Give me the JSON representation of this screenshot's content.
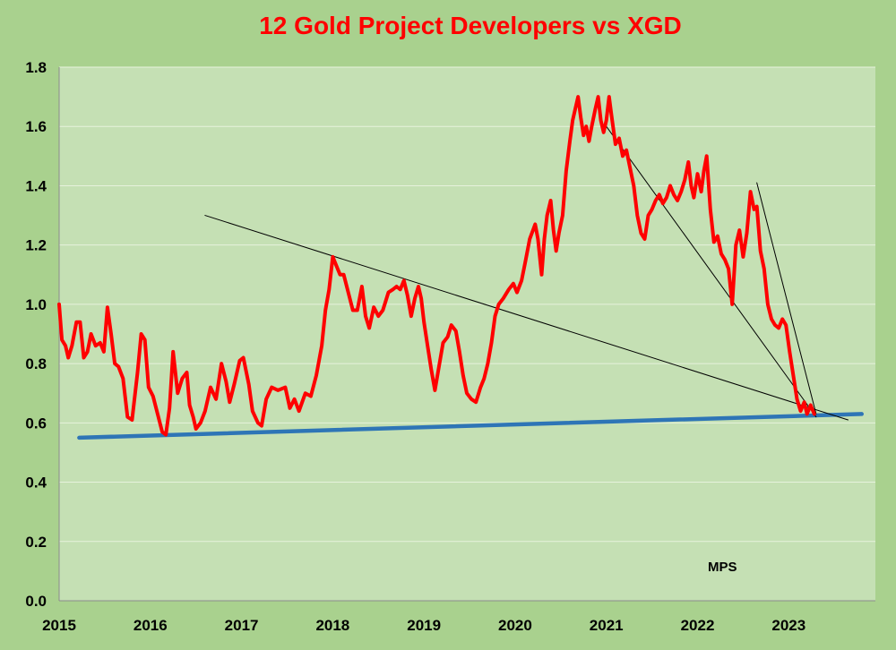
{
  "chart_data": {
    "type": "line",
    "title": "12 Gold Project Developers vs XGD",
    "annotation": "MPS",
    "xlabel": "",
    "ylabel": "",
    "xlim": [
      2015,
      2023.95
    ],
    "ylim": [
      0,
      1.8
    ],
    "x_ticks": [
      "2015",
      "2016",
      "2017",
      "2018",
      "2019",
      "2020",
      "2021",
      "2022",
      "2023"
    ],
    "y_ticks": [
      "0.0",
      "0.2",
      "0.4",
      "0.6",
      "0.8",
      "1.0",
      "1.2",
      "1.4",
      "1.6",
      "1.8"
    ],
    "grid": true,
    "legend": "none",
    "colors": {
      "outer_background": "#a9d18e",
      "plot_background": "#c5e0b4",
      "grid": "#e6f2dc",
      "title": "#ff0000",
      "ratio_line": "#ff0000",
      "support_line": "#2e75b6",
      "trend_lines": "#000000"
    },
    "series": [
      {
        "color": "#ff0000",
        "points": [
          [
            2015.0,
            1.0
          ],
          [
            2015.03,
            0.88
          ],
          [
            2015.07,
            0.86
          ],
          [
            2015.1,
            0.82
          ],
          [
            2015.14,
            0.86
          ],
          [
            2015.19,
            0.94
          ],
          [
            2015.23,
            0.94
          ],
          [
            2015.27,
            0.82
          ],
          [
            2015.31,
            0.84
          ],
          [
            2015.35,
            0.9
          ],
          [
            2015.4,
            0.86
          ],
          [
            2015.45,
            0.87
          ],
          [
            2015.49,
            0.84
          ],
          [
            2015.53,
            0.99
          ],
          [
            2015.57,
            0.9
          ],
          [
            2015.61,
            0.8
          ],
          [
            2015.65,
            0.79
          ],
          [
            2015.7,
            0.75
          ],
          [
            2015.75,
            0.62
          ],
          [
            2015.8,
            0.61
          ],
          [
            2015.86,
            0.77
          ],
          [
            2015.9,
            0.9
          ],
          [
            2015.94,
            0.88
          ],
          [
            2015.98,
            0.72
          ],
          [
            2016.03,
            0.69
          ],
          [
            2016.08,
            0.63
          ],
          [
            2016.13,
            0.57
          ],
          [
            2016.17,
            0.56
          ],
          [
            2016.21,
            0.65
          ],
          [
            2016.25,
            0.84
          ],
          [
            2016.3,
            0.7
          ],
          [
            2016.35,
            0.75
          ],
          [
            2016.4,
            0.77
          ],
          [
            2016.43,
            0.66
          ],
          [
            2016.47,
            0.62
          ],
          [
            2016.5,
            0.58
          ],
          [
            2016.55,
            0.6
          ],
          [
            2016.6,
            0.64
          ],
          [
            2016.66,
            0.72
          ],
          [
            2016.72,
            0.68
          ],
          [
            2016.78,
            0.8
          ],
          [
            2016.83,
            0.74
          ],
          [
            2016.87,
            0.67
          ],
          [
            2016.92,
            0.73
          ],
          [
            2016.98,
            0.81
          ],
          [
            2017.02,
            0.82
          ],
          [
            2017.08,
            0.73
          ],
          [
            2017.12,
            0.64
          ],
          [
            2017.18,
            0.6
          ],
          [
            2017.22,
            0.59
          ],
          [
            2017.27,
            0.68
          ],
          [
            2017.33,
            0.72
          ],
          [
            2017.4,
            0.71
          ],
          [
            2017.48,
            0.72
          ],
          [
            2017.53,
            0.65
          ],
          [
            2017.58,
            0.68
          ],
          [
            2017.63,
            0.64
          ],
          [
            2017.7,
            0.7
          ],
          [
            2017.76,
            0.69
          ],
          [
            2017.82,
            0.76
          ],
          [
            2017.88,
            0.86
          ],
          [
            2017.92,
            0.98
          ],
          [
            2017.96,
            1.05
          ],
          [
            2018.0,
            1.16
          ],
          [
            2018.04,
            1.13
          ],
          [
            2018.08,
            1.1
          ],
          [
            2018.12,
            1.1
          ],
          [
            2018.17,
            1.04
          ],
          [
            2018.22,
            0.98
          ],
          [
            2018.27,
            0.98
          ],
          [
            2018.32,
            1.06
          ],
          [
            2018.36,
            0.96
          ],
          [
            2018.4,
            0.92
          ],
          [
            2018.45,
            0.99
          ],
          [
            2018.5,
            0.96
          ],
          [
            2018.55,
            0.98
          ],
          [
            2018.61,
            1.04
          ],
          [
            2018.66,
            1.05
          ],
          [
            2018.7,
            1.06
          ],
          [
            2018.74,
            1.05
          ],
          [
            2018.78,
            1.08
          ],
          [
            2018.82,
            1.03
          ],
          [
            2018.86,
            0.96
          ],
          [
            2018.9,
            1.02
          ],
          [
            2018.94,
            1.06
          ],
          [
            2018.97,
            1.02
          ],
          [
            2019.0,
            0.94
          ],
          [
            2019.04,
            0.86
          ],
          [
            2019.08,
            0.78
          ],
          [
            2019.12,
            0.71
          ],
          [
            2019.17,
            0.8
          ],
          [
            2019.21,
            0.87
          ],
          [
            2019.26,
            0.89
          ],
          [
            2019.3,
            0.93
          ],
          [
            2019.35,
            0.91
          ],
          [
            2019.39,
            0.84
          ],
          [
            2019.43,
            0.76
          ],
          [
            2019.47,
            0.7
          ],
          [
            2019.52,
            0.68
          ],
          [
            2019.57,
            0.67
          ],
          [
            2019.62,
            0.72
          ],
          [
            2019.66,
            0.75
          ],
          [
            2019.7,
            0.8
          ],
          [
            2019.74,
            0.87
          ],
          [
            2019.78,
            0.96
          ],
          [
            2019.82,
            1.0
          ],
          [
            2019.87,
            1.02
          ],
          [
            2019.93,
            1.05
          ],
          [
            2019.98,
            1.07
          ],
          [
            2020.02,
            1.04
          ],
          [
            2020.07,
            1.08
          ],
          [
            2020.11,
            1.14
          ],
          [
            2020.16,
            1.22
          ],
          [
            2020.22,
            1.27
          ],
          [
            2020.25,
            1.22
          ],
          [
            2020.29,
            1.1
          ],
          [
            2020.32,
            1.22
          ],
          [
            2020.35,
            1.3
          ],
          [
            2020.39,
            1.35
          ],
          [
            2020.42,
            1.25
          ],
          [
            2020.45,
            1.18
          ],
          [
            2020.48,
            1.24
          ],
          [
            2020.52,
            1.3
          ],
          [
            2020.56,
            1.45
          ],
          [
            2020.6,
            1.55
          ],
          [
            2020.63,
            1.62
          ],
          [
            2020.66,
            1.66
          ],
          [
            2020.69,
            1.7
          ],
          [
            2020.72,
            1.63
          ],
          [
            2020.75,
            1.57
          ],
          [
            2020.78,
            1.6
          ],
          [
            2020.81,
            1.55
          ],
          [
            2020.84,
            1.6
          ],
          [
            2020.88,
            1.66
          ],
          [
            2020.91,
            1.7
          ],
          [
            2020.94,
            1.62
          ],
          [
            2020.97,
            1.58
          ],
          [
            2021.0,
            1.62
          ],
          [
            2021.03,
            1.7
          ],
          [
            2021.06,
            1.63
          ],
          [
            2021.1,
            1.54
          ],
          [
            2021.14,
            1.56
          ],
          [
            2021.18,
            1.5
          ],
          [
            2021.22,
            1.52
          ],
          [
            2021.26,
            1.46
          ],
          [
            2021.3,
            1.4
          ],
          [
            2021.34,
            1.3
          ],
          [
            2021.38,
            1.24
          ],
          [
            2021.42,
            1.22
          ],
          [
            2021.46,
            1.3
          ],
          [
            2021.5,
            1.32
          ],
          [
            2021.54,
            1.35
          ],
          [
            2021.58,
            1.37
          ],
          [
            2021.62,
            1.34
          ],
          [
            2021.66,
            1.36
          ],
          [
            2021.7,
            1.4
          ],
          [
            2021.74,
            1.37
          ],
          [
            2021.78,
            1.35
          ],
          [
            2021.82,
            1.38
          ],
          [
            2021.86,
            1.42
          ],
          [
            2021.9,
            1.48
          ],
          [
            2021.93,
            1.4
          ],
          [
            2021.96,
            1.36
          ],
          [
            2022.0,
            1.44
          ],
          [
            2022.04,
            1.38
          ],
          [
            2022.07,
            1.45
          ],
          [
            2022.1,
            1.5
          ],
          [
            2022.14,
            1.32
          ],
          [
            2022.18,
            1.21
          ],
          [
            2022.22,
            1.23
          ],
          [
            2022.26,
            1.17
          ],
          [
            2022.3,
            1.15
          ],
          [
            2022.34,
            1.12
          ],
          [
            2022.38,
            1.0
          ],
          [
            2022.42,
            1.2
          ],
          [
            2022.46,
            1.25
          ],
          [
            2022.5,
            1.16
          ],
          [
            2022.54,
            1.24
          ],
          [
            2022.58,
            1.38
          ],
          [
            2022.62,
            1.32
          ],
          [
            2022.65,
            1.33
          ],
          [
            2022.69,
            1.18
          ],
          [
            2022.73,
            1.12
          ],
          [
            2022.77,
            1.0
          ],
          [
            2022.81,
            0.95
          ],
          [
            2022.85,
            0.93
          ],
          [
            2022.89,
            0.92
          ],
          [
            2022.93,
            0.95
          ],
          [
            2022.97,
            0.93
          ],
          [
            2023.01,
            0.84
          ],
          [
            2023.05,
            0.76
          ],
          [
            2023.09,
            0.68
          ],
          [
            2023.13,
            0.64
          ],
          [
            2023.17,
            0.67
          ],
          [
            2023.2,
            0.63
          ],
          [
            2023.24,
            0.66
          ],
          [
            2023.28,
            0.63
          ]
        ]
      }
    ],
    "trend_lines": [
      {
        "color": "#2e75b6",
        "width": "thick",
        "from": [
          2015.22,
          0.55
        ],
        "to": [
          2023.8,
          0.63
        ]
      },
      {
        "color": "#000000",
        "width": "thin",
        "from": [
          2016.6,
          1.3
        ],
        "to": [
          2023.65,
          0.61
        ]
      },
      {
        "color": "#000000",
        "width": "thin",
        "from": [
          2021.0,
          1.6
        ],
        "to": [
          2023.3,
          0.62
        ]
      },
      {
        "color": "#000000",
        "width": "thin",
        "from": [
          2022.65,
          1.41
        ],
        "to": [
          2023.3,
          0.63
        ]
      }
    ]
  }
}
